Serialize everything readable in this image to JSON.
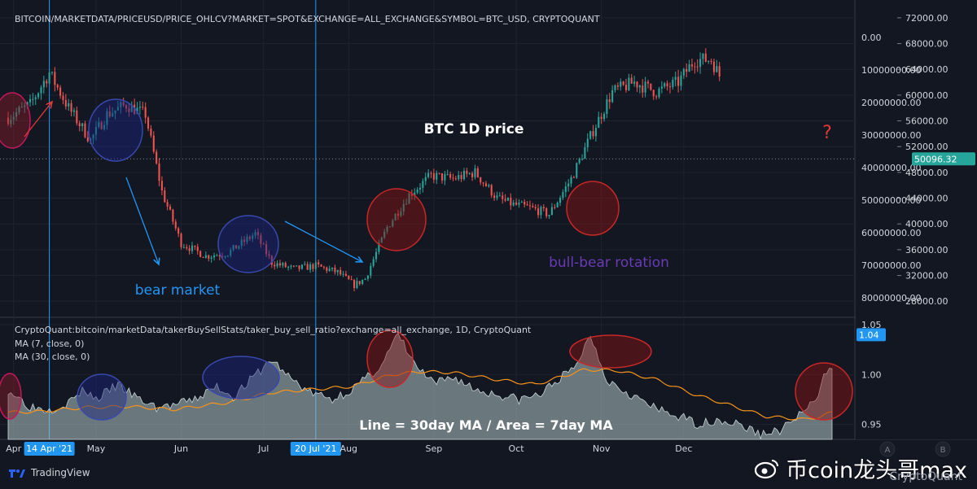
{
  "header": {
    "top_title": "BITCOIN/MARKETDATA/PRICEUSD/PRICE_OHLCV?MARKET=SPOT&EXCHANGE=ALL_EXCHANGE&SYMBOL=BTC_USD, CRYPTOQUANT",
    "bottom_title": "CryptoQuant:bitcoin/marketData/takerBuySellStats/taker_buy_sell_ratio?exchange=all_exchange, 1D, CryptoQuant",
    "ma_fast": "MA (7, close, 0)",
    "ma_slow": "MA (30, close, 0)"
  },
  "annotations": {
    "price_label": "BTC 1D price",
    "bear_label": "bear market",
    "rotation_label": "bull-bear rotation",
    "question": "?",
    "indicator_note": "Line = 30day MA / Area = 7day MA"
  },
  "colors": {
    "background": "#131722",
    "up": "#26a69a",
    "down": "#ef5350",
    "ma30": "#f7931a",
    "area": "#b2c6c9",
    "vline": "#2196f3",
    "red_circle": "#c62828",
    "blue_circle": "#1a237e",
    "bear_text": "#2196f3",
    "rotation_text": "#6a3bb5"
  },
  "footer": {
    "brand": "TradingView",
    "watermark": "币coin龙头哥max",
    "watermark_sub": "CryptoQuant",
    "weibo_icon": "weibo-icon"
  },
  "buttons": {
    "a": "A",
    "b": "B"
  },
  "chart_data": [
    {
      "type": "candlestick",
      "price_axis": {
        "ticks": [
          "72000.00",
          "68000.00",
          "64000.00",
          "60000.00",
          "56000.00",
          "52000.00",
          "48000.00",
          "44000.00",
          "40000.00",
          "36000.00",
          "32000.00",
          "28000.00"
        ],
        "values": [
          72000,
          68000,
          64000,
          60000,
          56000,
          52000,
          48000,
          44000,
          40000,
          36000,
          32000,
          28000
        ],
        "ylim": [
          25500,
          73500
        ],
        "current": "50096.32",
        "current_value": 50096.32
      },
      "secondary_axis": {
        "ticks": [
          "0.00",
          "10000000.00",
          "20000000.00",
          "30000000.00",
          "40000000.00",
          "50000000.00",
          "60000000.00",
          "70000000.00",
          "80000000.00"
        ]
      },
      "price_path": {
        "x_range": [
          "2021-03-30",
          "2021-12-14"
        ],
        "anchors": [
          [
            0,
            56500
          ],
          [
            8,
            58500
          ],
          [
            15,
            63500
          ],
          [
            22,
            58000
          ],
          [
            30,
            53000
          ],
          [
            36,
            57000
          ],
          [
            43,
            58500
          ],
          [
            50,
            57000
          ],
          [
            56,
            45000
          ],
          [
            63,
            37000
          ],
          [
            72,
            35000
          ],
          [
            80,
            35500
          ],
          [
            90,
            38500
          ],
          [
            96,
            34000
          ],
          [
            104,
            33000
          ],
          [
            112,
            33500
          ],
          [
            120,
            32500
          ],
          [
            126,
            30500
          ],
          [
            130,
            31500
          ],
          [
            138,
            39500
          ],
          [
            146,
            44500
          ],
          [
            154,
            47500
          ],
          [
            162,
            47000
          ],
          [
            170,
            48000
          ],
          [
            178,
            44000
          ],
          [
            184,
            43000
          ],
          [
            190,
            42500
          ],
          [
            197,
            41500
          ],
          [
            205,
            47000
          ],
          [
            213,
            54500
          ],
          [
            220,
            60500
          ],
          [
            228,
            62000
          ],
          [
            236,
            60500
          ],
          [
            244,
            62000
          ],
          [
            250,
            65500
          ],
          [
            256,
            65500
          ],
          [
            262,
            60500
          ],
          [
            270,
            57500
          ],
          [
            276,
            57000
          ],
          [
            282,
            57500
          ],
          [
            288,
            48500
          ],
          [
            294,
            49500
          ],
          [
            300,
            50000
          ]
        ]
      }
    },
    {
      "type": "area",
      "name": "taker_buy_sell_ratio",
      "axis_ticks": [
        "1.05",
        "1.00",
        "0.95"
      ],
      "axis_values": [
        1.05,
        1.0,
        0.95
      ],
      "ylim": [
        0.935,
        1.0575
      ],
      "current_label": "1.04",
      "current_value": 1.04,
      "area_7d_anchors": [
        [
          0,
          0.985
        ],
        [
          8,
          0.968
        ],
        [
          15,
          0.965
        ],
        [
          22,
          0.972
        ],
        [
          28,
          0.985
        ],
        [
          32,
          0.975
        ],
        [
          40,
          0.99
        ],
        [
          47,
          0.976
        ],
        [
          54,
          0.967
        ],
        [
          62,
          0.97
        ],
        [
          68,
          0.975
        ],
        [
          76,
          0.988
        ],
        [
          82,
          0.978
        ],
        [
          90,
          0.999
        ],
        [
          96,
          1.015
        ],
        [
          102,
          0.998
        ],
        [
          110,
          0.982
        ],
        [
          118,
          0.975
        ],
        [
          125,
          0.985
        ],
        [
          130,
          0.995
        ],
        [
          136,
          1.01
        ],
        [
          142,
          1.04
        ],
        [
          148,
          1.01
        ],
        [
          155,
          0.99
        ],
        [
          162,
          0.998
        ],
        [
          170,
          0.985
        ],
        [
          178,
          0.98
        ],
        [
          186,
          0.975
        ],
        [
          194,
          0.98
        ],
        [
          200,
          0.995
        ],
        [
          206,
          1.005
        ],
        [
          212,
          1.04
        ],
        [
          218,
          0.995
        ],
        [
          224,
          0.985
        ],
        [
          230,
          0.975
        ],
        [
          236,
          0.965
        ],
        [
          244,
          0.958
        ],
        [
          252,
          0.95
        ],
        [
          258,
          0.955
        ],
        [
          266,
          0.95
        ],
        [
          274,
          0.94
        ],
        [
          282,
          0.945
        ],
        [
          288,
          0.96
        ],
        [
          294,
          0.972
        ],
        [
          298,
          1.005
        ],
        [
          300,
          1.01
        ]
      ],
      "ma_30d_anchors": [
        [
          0,
          0.962
        ],
        [
          12,
          0.963
        ],
        [
          28,
          0.967
        ],
        [
          44,
          0.968
        ],
        [
          60,
          0.965
        ],
        [
          80,
          0.972
        ],
        [
          96,
          0.982
        ],
        [
          110,
          0.985
        ],
        [
          125,
          0.988
        ],
        [
          140,
          1.0
        ],
        [
          150,
          1.003
        ],
        [
          162,
          1.002
        ],
        [
          178,
          0.995
        ],
        [
          192,
          0.99
        ],
        [
          210,
          1.005
        ],
        [
          222,
          1.004
        ],
        [
          236,
          0.995
        ],
        [
          250,
          0.98
        ],
        [
          262,
          0.97
        ],
        [
          276,
          0.958
        ],
        [
          290,
          0.955
        ],
        [
          296,
          0.958
        ],
        [
          300,
          0.962
        ]
      ]
    }
  ],
  "time_axis": {
    "labels": [
      "Apr",
      "14 Apr '21",
      "May",
      "Jun",
      "Jul",
      "20 Jul '21",
      "Aug",
      "Sep",
      "Oct",
      "Nov",
      "Dec"
    ],
    "values": [
      "2021-04-01",
      "2021-04-14",
      "2021-05-01",
      "2021-06-01",
      "2021-07-01",
      "2021-07-20",
      "2021-08-01",
      "2021-09-01",
      "2021-10-01",
      "2021-11-01",
      "2021-12-01"
    ],
    "highlighted": [
      "14 Apr '21",
      "20 Jul '21"
    ]
  }
}
